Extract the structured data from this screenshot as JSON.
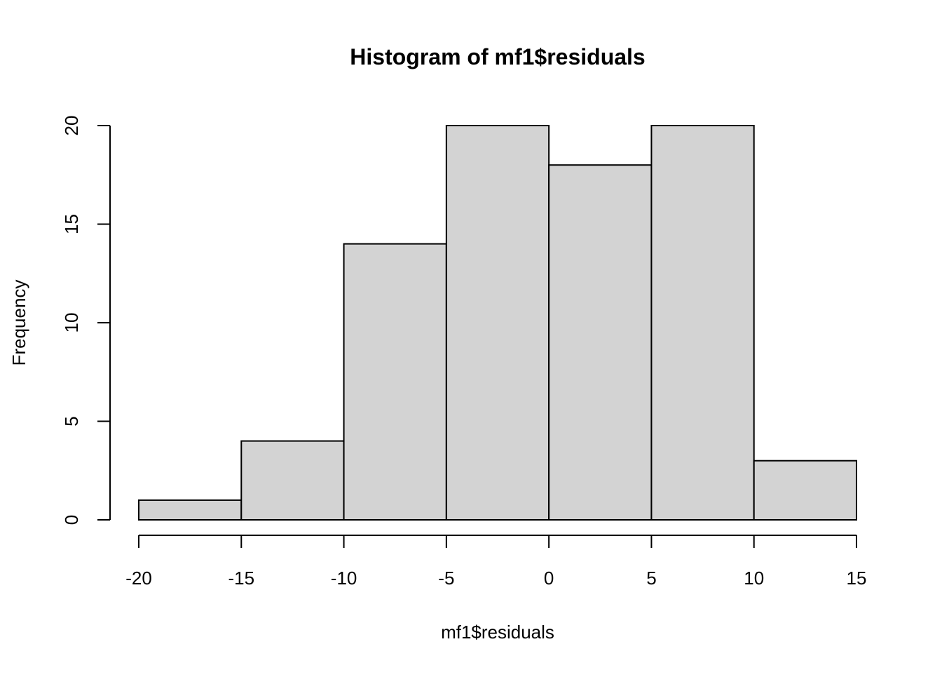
{
  "chart_data": {
    "type": "bar",
    "title": "Histogram of mf1$residuals",
    "xlabel": "mf1$residuals",
    "ylabel": "Frequency",
    "bin_edges": [
      -20,
      -15,
      -10,
      -5,
      0,
      5,
      10,
      15
    ],
    "values": [
      1,
      4,
      14,
      20,
      18,
      20,
      3
    ],
    "xlim": [
      -20,
      15
    ],
    "ylim": [
      0,
      20
    ],
    "xticks": [
      -20,
      -15,
      -10,
      -5,
      0,
      5,
      10,
      15
    ],
    "yticks": [
      0,
      5,
      10,
      15,
      20
    ],
    "grid": false,
    "bar_fill": "#d3d3d3",
    "bar_stroke": "#000000"
  }
}
